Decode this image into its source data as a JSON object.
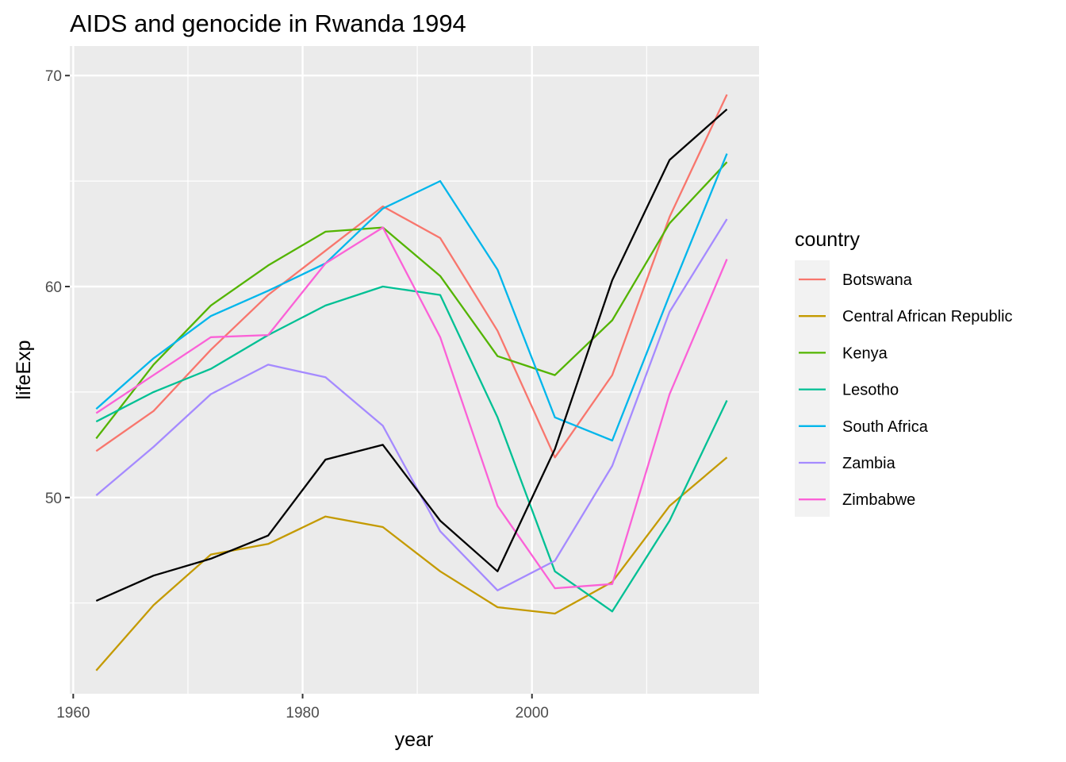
{
  "chart_data": {
    "type": "line",
    "title": "AIDS and genocide in Rwanda 1994",
    "xlabel": "year",
    "ylabel": "lifeExp",
    "xlim": [
      1959.7,
      2019.8
    ],
    "ylim": [
      40.7,
      71.4
    ],
    "x_ticks": [
      {
        "value": 1960,
        "label": "1960"
      },
      {
        "value": 1980,
        "label": "1980"
      },
      {
        "value": 2000,
        "label": "2000"
      }
    ],
    "y_ticks": [
      {
        "value": 50,
        "label": "50"
      },
      {
        "value": 60,
        "label": "60"
      },
      {
        "value": 70,
        "label": "70"
      }
    ],
    "x_minor": [
      1970,
      1990,
      2010
    ],
    "y_minor": [
      45,
      55,
      65
    ],
    "grid": true,
    "legend_title": "country",
    "legend_position": "right",
    "x": [
      1962,
      1967,
      1972,
      1977,
      1982,
      1987,
      1992,
      1997,
      2002,
      2007,
      2012,
      2017
    ],
    "series": [
      {
        "name": "Botswana",
        "color": "#F8766D",
        "values": [
          52.2,
          54.1,
          57.0,
          59.6,
          61.7,
          63.8,
          62.3,
          57.9,
          51.9,
          55.8,
          63.3,
          69.1
        ]
      },
      {
        "name": "Central African Republic",
        "color": "#C49A00",
        "values": [
          41.8,
          44.9,
          47.3,
          47.8,
          49.1,
          48.6,
          46.5,
          44.8,
          44.5,
          46.0,
          49.6,
          51.9
        ]
      },
      {
        "name": "Kenya",
        "color": "#53B400",
        "values": [
          52.8,
          56.3,
          59.1,
          61.0,
          62.6,
          62.8,
          60.5,
          56.7,
          55.8,
          58.4,
          63.0,
          65.9
        ]
      },
      {
        "name": "Lesotho",
        "color": "#00C094",
        "values": [
          53.6,
          55.0,
          56.1,
          57.7,
          59.1,
          60.0,
          59.6,
          53.8,
          46.5,
          44.6,
          48.9,
          54.6
        ]
      },
      {
        "name": "South Africa",
        "color": "#00B6EB",
        "values": [
          54.2,
          56.6,
          58.6,
          59.8,
          61.1,
          63.7,
          65.0,
          60.8,
          53.8,
          52.7,
          59.6,
          66.3
        ]
      },
      {
        "name": "Zambia",
        "color": "#A58AFF",
        "values": [
          50.1,
          52.4,
          54.9,
          56.3,
          55.7,
          53.4,
          48.4,
          45.6,
          47.0,
          51.5,
          58.8,
          63.2
        ]
      },
      {
        "name": "Zimbabwe",
        "color": "#FB61D7",
        "values": [
          54.0,
          55.8,
          57.6,
          57.7,
          61.1,
          62.8,
          57.6,
          49.6,
          45.7,
          45.9,
          54.9,
          61.3
        ]
      },
      {
        "color": "#000000",
        "values": [
          45.1,
          46.3,
          47.1,
          48.2,
          51.8,
          52.5,
          48.9,
          46.5,
          52.3,
          60.3,
          66.0,
          68.4
        ]
      }
    ]
  }
}
